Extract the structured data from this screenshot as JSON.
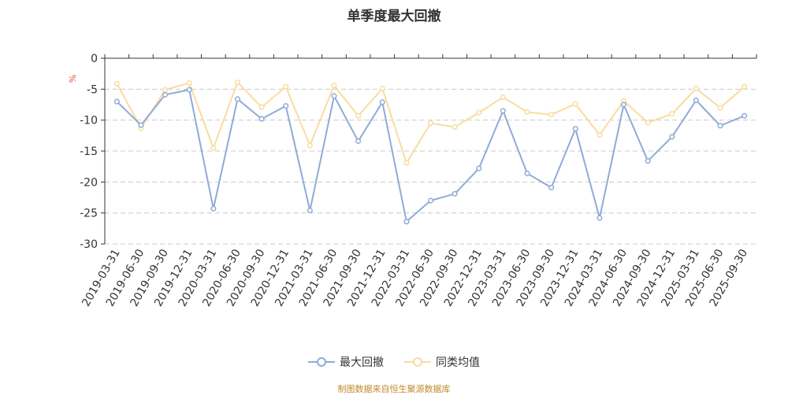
{
  "chart_data": {
    "type": "line",
    "title": "单季度最大回撤",
    "ylabel": "%",
    "ylim": [
      -30,
      0
    ],
    "yticks": [
      0,
      -5,
      -10,
      -15,
      -20,
      -25,
      -30
    ],
    "categories": [
      "2019-03-31",
      "2019-06-30",
      "2019-09-30",
      "2019-12-31",
      "2020-03-31",
      "2020-06-30",
      "2020-09-30",
      "2020-12-31",
      "2021-03-31",
      "2021-06-30",
      "2021-09-30",
      "2021-12-31",
      "2022-03-31",
      "2022-06-30",
      "2022-09-30",
      "2022-12-31",
      "2023-03-31",
      "2023-06-30",
      "2023-09-30",
      "2023-12-31",
      "2024-03-31",
      "2024-06-30",
      "2024-09-30",
      "2024-12-31",
      "2025-03-31",
      "2025-06-30",
      "2025-09-30"
    ],
    "series": [
      {
        "name": "最大回撤",
        "color": "#8eabd6",
        "values": [
          -7.0,
          -10.8,
          -5.9,
          -5.1,
          -24.3,
          -6.6,
          -9.8,
          -7.7,
          -24.6,
          -6.1,
          -13.4,
          -7.1,
          -26.4,
          -23.0,
          -21.9,
          -17.8,
          -8.5,
          -18.6,
          -20.9,
          -11.4,
          -25.8,
          -7.5,
          -16.6,
          -12.7,
          -6.8,
          -10.9,
          -9.3
        ]
      },
      {
        "name": "同类均值",
        "color": "#f9dc9e",
        "values": [
          -4.1,
          -11.3,
          -5.1,
          -4.0,
          -14.5,
          -3.9,
          -7.9,
          -4.6,
          -14.1,
          -4.4,
          -9.3,
          -4.9,
          -16.9,
          -10.5,
          -11.1,
          -8.8,
          -6.3,
          -8.7,
          -9.1,
          -7.4,
          -12.4,
          -6.9,
          -10.4,
          -9.0,
          -4.9,
          -8.0,
          -4.6
        ]
      }
    ]
  },
  "source": "制图数据来自恒生聚源数据库"
}
